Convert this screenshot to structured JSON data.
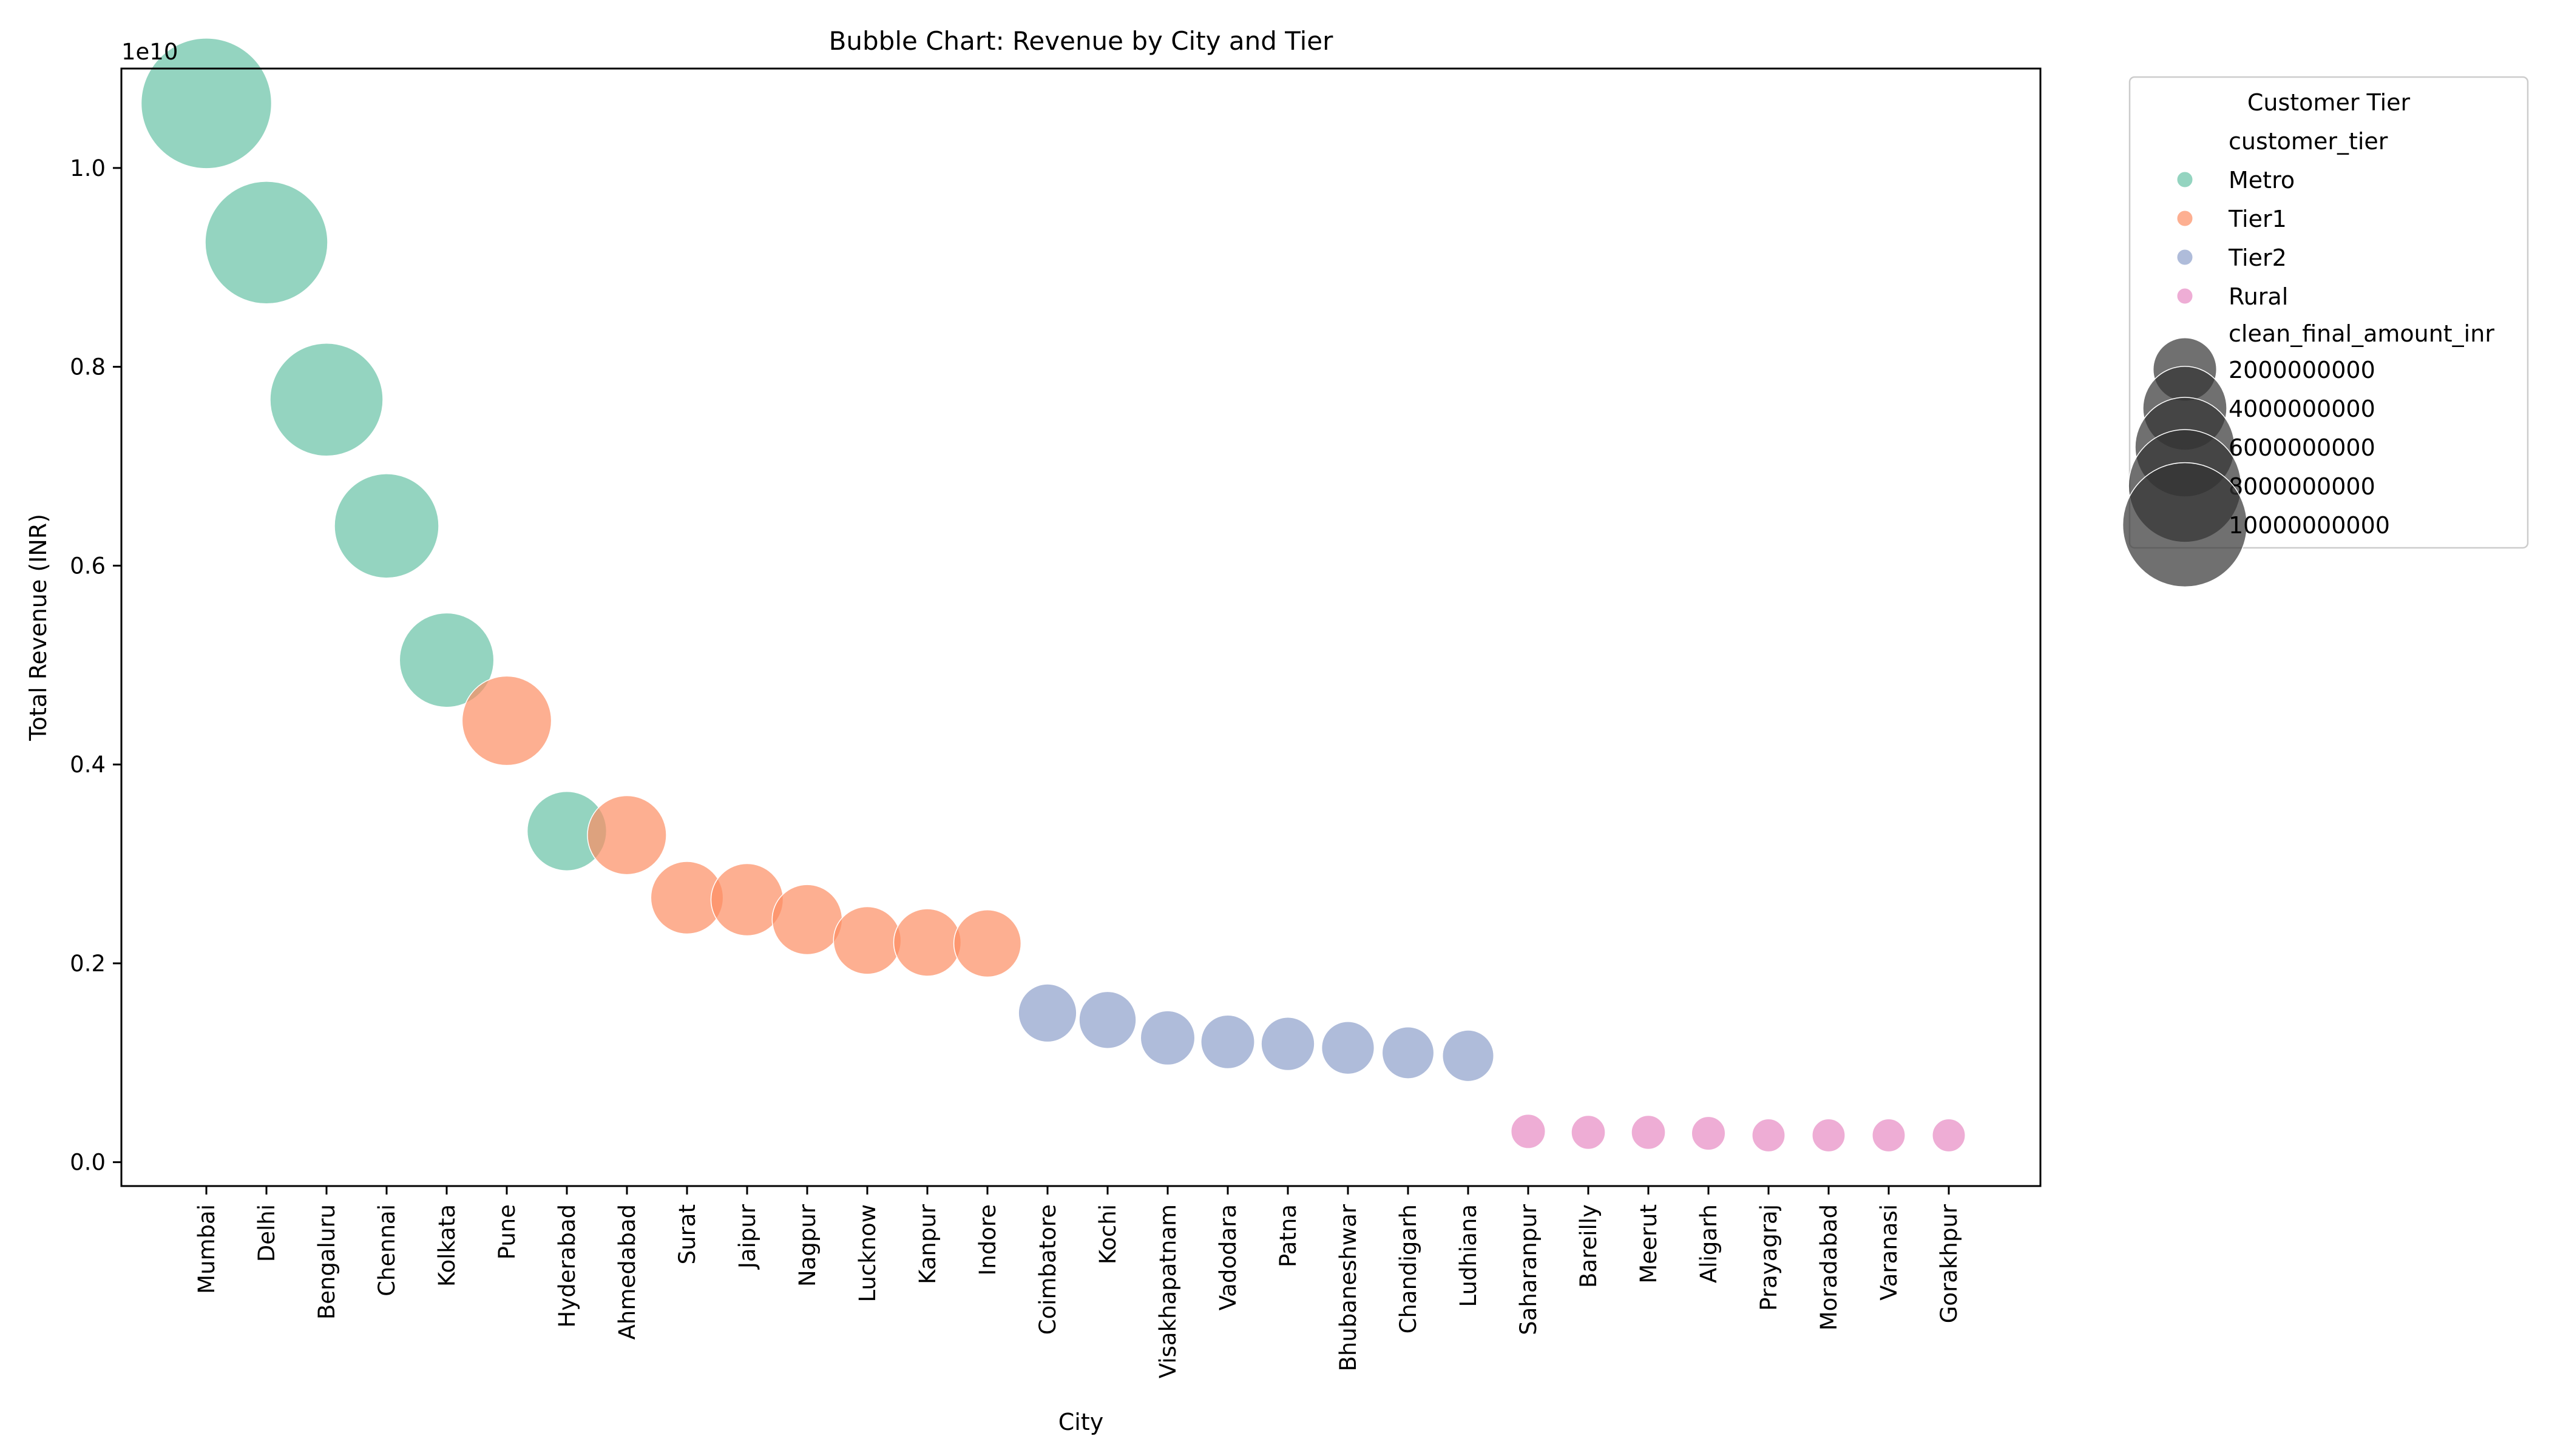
{
  "chart_data": {
    "type": "scatter",
    "title": "Bubble Chart: Revenue by City and Tier",
    "xlabel": "City",
    "ylabel": "Total Revenue (INR)",
    "y_offset_label": "1e10",
    "ylim": [
      -0.024,
      1.1
    ],
    "y_ticks": [
      0.0,
      0.2,
      0.4,
      0.6,
      0.8,
      1.0
    ],
    "y_tick_labels": [
      "0.0",
      "0.2",
      "0.4",
      "0.6",
      "0.8",
      "1.0"
    ],
    "grid": false,
    "legend": {
      "title": "Customer Tier",
      "placement": "outside-top-right",
      "hue_header": "customer_tier",
      "size_header": "clean_final_amount_inr",
      "size_entries": [
        {
          "label": "2000000000",
          "value": 2000000000
        },
        {
          "label": "4000000000",
          "value": 4000000000
        },
        {
          "label": "6000000000",
          "value": 6000000000
        },
        {
          "label": "8000000000",
          "value": 8000000000
        },
        {
          "label": "10000000000",
          "value": 10000000000
        }
      ]
    },
    "tiers": [
      {
        "name": "Metro",
        "color": "#66c2a5"
      },
      {
        "name": "Tier1",
        "color": "#fc8d62"
      },
      {
        "name": "Tier2",
        "color": "#8da0cb"
      },
      {
        "name": "Rural",
        "color": "#e78ac3"
      }
    ],
    "categories": [
      "Mumbai",
      "Delhi",
      "Bengaluru",
      "Chennai",
      "Kolkata",
      "Pune",
      "Hyderabad",
      "Ahmedabad",
      "Surat",
      "Jaipur",
      "Nagpur",
      "Lucknow",
      "Kanpur",
      "Indore",
      "Coimbatore",
      "Kochi",
      "Visakhapatnam",
      "Vadodara",
      "Patna",
      "Bhubaneshwar",
      "Chandigarh",
      "Ludhiana",
      "Saharanpur",
      "Bareilly",
      "Meerut",
      "Aligarh",
      "Prayagraj",
      "Moradabad",
      "Varanasi",
      "Gorakhpur"
    ],
    "points": [
      {
        "city": "Mumbai",
        "tier": "Metro",
        "revenue": 10650000000
      },
      {
        "city": "Delhi",
        "tier": "Metro",
        "revenue": 9250000000
      },
      {
        "city": "Bengaluru",
        "tier": "Metro",
        "revenue": 7670000000
      },
      {
        "city": "Chennai",
        "tier": "Metro",
        "revenue": 6400000000
      },
      {
        "city": "Kolkata",
        "tier": "Metro",
        "revenue": 5050000000
      },
      {
        "city": "Pune",
        "tier": "Tier1",
        "revenue": 4440000000
      },
      {
        "city": "Hyderabad",
        "tier": "Metro",
        "revenue": 3330000000
      },
      {
        "city": "Ahmedabad",
        "tier": "Tier1",
        "revenue": 3290000000
      },
      {
        "city": "Surat",
        "tier": "Tier1",
        "revenue": 2660000000
      },
      {
        "city": "Jaipur",
        "tier": "Tier1",
        "revenue": 2640000000
      },
      {
        "city": "Nagpur",
        "tier": "Tier1",
        "revenue": 2440000000
      },
      {
        "city": "Lucknow",
        "tier": "Tier1",
        "revenue": 2230000000
      },
      {
        "city": "Kanpur",
        "tier": "Tier1",
        "revenue": 2210000000
      },
      {
        "city": "Indore",
        "tier": "Tier1",
        "revenue": 2200000000
      },
      {
        "city": "Coimbatore",
        "tier": "Tier2",
        "revenue": 1500000000
      },
      {
        "city": "Kochi",
        "tier": "Tier2",
        "revenue": 1430000000
      },
      {
        "city": "Visakhapatnam",
        "tier": "Tier2",
        "revenue": 1250000000
      },
      {
        "city": "Vadodara",
        "tier": "Tier2",
        "revenue": 1210000000
      },
      {
        "city": "Patna",
        "tier": "Tier2",
        "revenue": 1190000000
      },
      {
        "city": "Bhubaneshwar",
        "tier": "Tier2",
        "revenue": 1150000000
      },
      {
        "city": "Chandigarh",
        "tier": "Tier2",
        "revenue": 1100000000
      },
      {
        "city": "Ludhiana",
        "tier": "Tier2",
        "revenue": 1070000000
      },
      {
        "city": "Saharanpur",
        "tier": "Rural",
        "revenue": 310000000
      },
      {
        "city": "Bareilly",
        "tier": "Rural",
        "revenue": 300000000
      },
      {
        "city": "Meerut",
        "tier": "Rural",
        "revenue": 300000000
      },
      {
        "city": "Aligarh",
        "tier": "Rural",
        "revenue": 290000000
      },
      {
        "city": "Prayagraj",
        "tier": "Rural",
        "revenue": 270000000
      },
      {
        "city": "Moradabad",
        "tier": "Rural",
        "revenue": 270000000
      },
      {
        "city": "Varanasi",
        "tier": "Rural",
        "revenue": 270000000
      },
      {
        "city": "Gorakhpur",
        "tier": "Rural",
        "revenue": 270000000
      }
    ]
  }
}
